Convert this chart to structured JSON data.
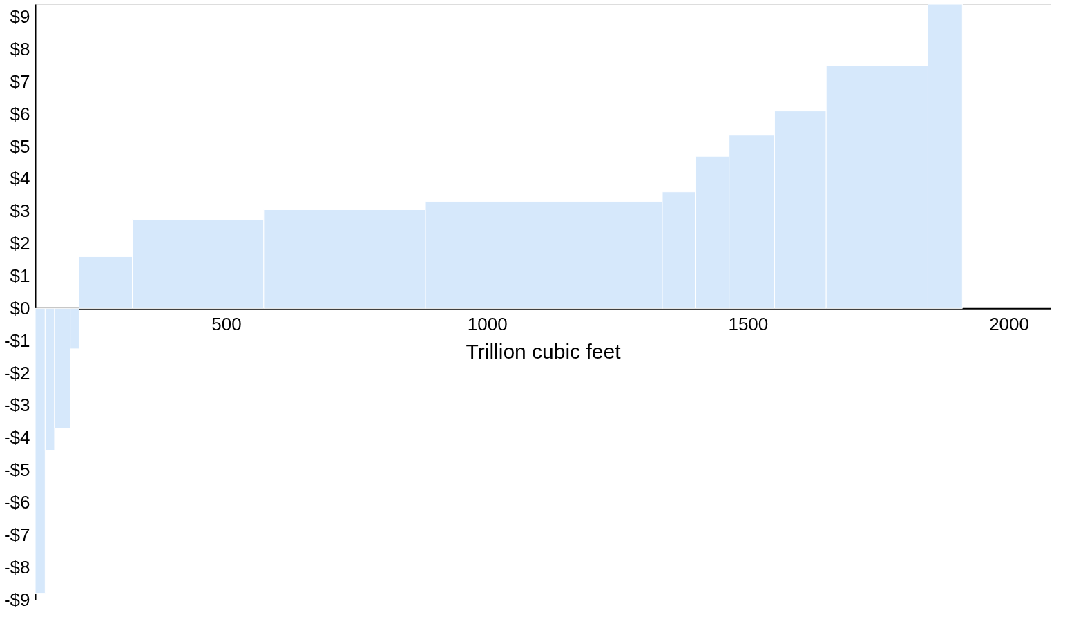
{
  "chart_data": {
    "type": "histogram",
    "xlabel": "Trillion cubic feet",
    "bins": [
      134,
      153,
      171,
      201,
      218,
      320,
      572,
      882,
      1336,
      1399,
      1464,
      1551,
      1650,
      1845,
      1911
    ],
    "values": [
      -8.8,
      -4.4,
      -3.7,
      -1.25,
      1.6,
      2.75,
      3.05,
      3.3,
      3.6,
      4.7,
      5.35,
      6.1,
      7.5,
      9.4
    ],
    "color": "#d6e8fb",
    "xlim": [
      134,
      2080
    ],
    "xticks": [
      500,
      1000,
      1500,
      2000
    ],
    "ylim": [
      -9,
      9.4
    ],
    "yticks": [
      {
        "value": -9,
        "label": "-$9"
      },
      {
        "value": -8,
        "label": "-$8"
      },
      {
        "value": -7,
        "label": "-$7"
      },
      {
        "value": -6,
        "label": "-$6"
      },
      {
        "value": -5,
        "label": "-$5"
      },
      {
        "value": -4,
        "label": "-$4"
      },
      {
        "value": -3,
        "label": "-$3"
      },
      {
        "value": -2,
        "label": "-$2"
      },
      {
        "value": -1,
        "label": "-$1"
      },
      {
        "value": 0,
        "label": "$0"
      },
      {
        "value": 1,
        "label": "$1"
      },
      {
        "value": 2,
        "label": "$2"
      },
      {
        "value": 3,
        "label": "$3"
      },
      {
        "value": 4,
        "label": "$4"
      },
      {
        "value": 5,
        "label": "$5"
      },
      {
        "value": 6,
        "label": "$6"
      },
      {
        "value": 7,
        "label": "$7"
      },
      {
        "value": 8,
        "label": "$8"
      },
      {
        "value": 9,
        "label": "$9"
      }
    ],
    "grid": false
  }
}
